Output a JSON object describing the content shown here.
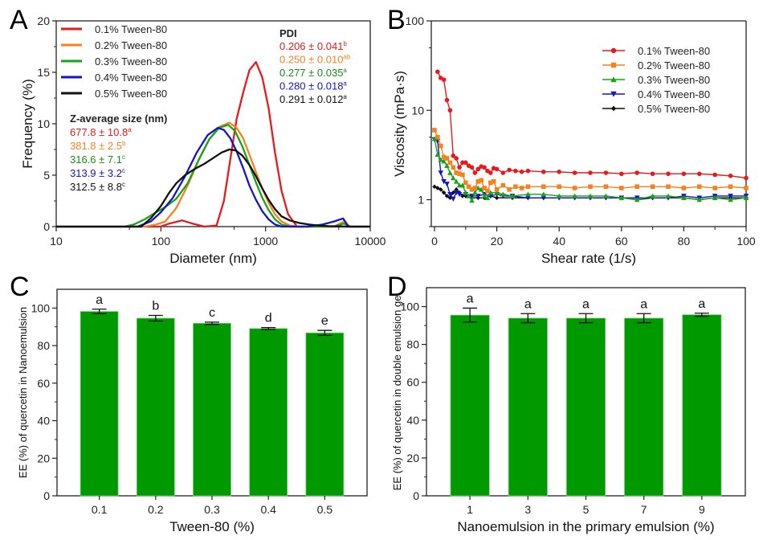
{
  "colors": {
    "red": "#e8191c",
    "orange": "#f5821f",
    "green": "#16a516",
    "blue": "#1414c8",
    "black": "#111111",
    "bar": "#009900",
    "pdi_green": "#1a8c1a"
  },
  "chart_data": [
    {
      "panel": "A",
      "type": "line",
      "xscale": "log",
      "xlabel": "Diameter (nm)",
      "ylabel": "Frequency (%)",
      "xlim": [
        10,
        10000
      ],
      "ylim": [
        0,
        20
      ],
      "xticks": [
        "10",
        "100",
        "1000",
        "10000"
      ],
      "yticks": [
        "0",
        "5",
        "10",
        "15",
        "20"
      ],
      "legend_position": "top-left",
      "series": [
        {
          "name": "0.1% Tween-80",
          "color": "#e8191c",
          "x": [
            10,
            100,
            120,
            160,
            200,
            260,
            340,
            400,
            460,
            530,
            610,
            700,
            810,
            930,
            1070,
            1230,
            1420,
            1640,
            2000,
            10000
          ],
          "y": [
            0,
            0,
            0.3,
            0.6,
            0.3,
            0,
            0.1,
            2.5,
            6.5,
            10.5,
            13,
            15.2,
            16,
            14.5,
            11.5,
            7.2,
            3.5,
            1.2,
            0,
            0
          ]
        },
        {
          "name": "0.2% Tween-80",
          "color": "#f5821f",
          "x": [
            10,
            70,
            90,
            110,
            140,
            180,
            230,
            290,
            360,
            450,
            530,
            610,
            700,
            810,
            930,
            1070,
            1230,
            1420,
            1700,
            2100,
            4500,
            5600,
            6400,
            10000
          ],
          "y": [
            0,
            0,
            0.2,
            0.5,
            1.8,
            4,
            6.5,
            8.5,
            9.7,
            10.1,
            9.6,
            8.6,
            7,
            5.3,
            3.7,
            2.3,
            1.2,
            0.5,
            0.1,
            0,
            0,
            0.5,
            0,
            0
          ]
        },
        {
          "name": "0.3% Tween-80",
          "color": "#16a516",
          "x": [
            10,
            45,
            55,
            70,
            90,
            110,
            140,
            180,
            230,
            290,
            360,
            440,
            510,
            600,
            700,
            810,
            930,
            1070,
            1230,
            1420,
            1700,
            2000,
            4500,
            5600,
            6400,
            10000
          ],
          "y": [
            0,
            0,
            0.2,
            0.7,
            1.4,
            1.9,
            2.7,
            4.2,
            6.5,
            8.5,
            9.6,
            9.9,
            9.3,
            7.8,
            6,
            4.3,
            2.8,
            1.6,
            0.7,
            0.2,
            0,
            0,
            0,
            0.3,
            0,
            0
          ]
        },
        {
          "name": "0.4% Tween-80",
          "color": "#1414c8",
          "x": [
            10,
            60,
            80,
            100,
            130,
            170,
            220,
            280,
            350,
            400,
            460,
            530,
            610,
            700,
            810,
            930,
            1070,
            1230,
            1420,
            1600,
            2500,
            3500,
            4500,
            5500,
            6200,
            10000
          ],
          "y": [
            0,
            0,
            0.5,
            1.4,
            2.8,
            4.9,
            7.2,
            8.9,
            9.6,
            9.4,
            8.6,
            7.3,
            5.7,
            4,
            2.6,
            1.5,
            0.7,
            0.2,
            0,
            0,
            0,
            0.2,
            0.5,
            0.8,
            0,
            0
          ]
        },
        {
          "name": "0.5% Tween-80",
          "color": "#111111",
          "x": [
            10,
            65,
            80,
            100,
            120,
            140,
            170,
            210,
            260,
            320,
            380,
            450,
            520,
            600,
            700,
            810,
            930,
            1070,
            1230,
            1420,
            1700,
            2100,
            2600,
            3200,
            4000,
            5000,
            6000,
            10000
          ],
          "y": [
            0,
            0,
            0.8,
            2,
            3.3,
            4.2,
            5,
            5.6,
            6.1,
            6.7,
            7.2,
            7.5,
            7.4,
            6.9,
            6,
            4.9,
            3.7,
            2.6,
            1.7,
            1,
            0.6,
            0.35,
            0.2,
            0.1,
            0.05,
            0.02,
            0,
            0
          ]
        }
      ],
      "annotations": {
        "zavg_title": "Z-average size (nm)",
        "zavg": [
          {
            "value": "677.8 ± 10.8",
            "sup": "a",
            "color": "#e8191c"
          },
          {
            "value": "381.8 ± 2.5",
            "sup": "b",
            "color": "#f5821f"
          },
          {
            "value": "316.6 ± 7.1",
            "sup": "c",
            "color": "#1a8c1a"
          },
          {
            "value": "313.9 ± 3.2",
            "sup": "c",
            "color": "#1414c8"
          },
          {
            "value": "312.5 ± 8.8",
            "sup": "c",
            "color": "#111111"
          }
        ],
        "pdi_title": "PDI",
        "pdi": [
          {
            "value": "0.206 ± 0.041",
            "sup": "b",
            "color": "#e8191c"
          },
          {
            "value": "0.250 ± 0.010",
            "sup": "ab",
            "color": "#f5821f"
          },
          {
            "value": "0.277 ± 0.035",
            "sup": "a",
            "color": "#1a8c1a"
          },
          {
            "value": "0.280 ± 0.018",
            "sup": "a",
            "color": "#1414c8"
          },
          {
            "value": "0.291 ± 0.012",
            "sup": "a",
            "color": "#111111"
          }
        ]
      }
    },
    {
      "panel": "B",
      "type": "line",
      "yscale": "log",
      "xlabel": "Shear rate (1/s)",
      "ylabel": "Viscosity (mPa·s)",
      "xlim": [
        -1,
        100
      ],
      "ylim": [
        0.5,
        100
      ],
      "xticks": [
        "0",
        "20",
        "40",
        "60",
        "80",
        "100"
      ],
      "yticks": [
        "1",
        "10",
        "100"
      ],
      "legend_position": "top-right",
      "series": [
        {
          "name": "0.1% Tween-80",
          "color": "#e8191c",
          "marker": "circle",
          "x": [
            1,
            2,
            3,
            4,
            5,
            6,
            7,
            8,
            9,
            10,
            11,
            12,
            13,
            14,
            15,
            16,
            17,
            18,
            19,
            20,
            22,
            24,
            26,
            28,
            30,
            35,
            40,
            45,
            50,
            55,
            60,
            65,
            70,
            75,
            80,
            85,
            90,
            95,
            100
          ],
          "y": [
            27,
            23,
            22,
            13,
            10,
            3.1,
            2.9,
            2.3,
            2.6,
            2.6,
            2.4,
            2.3,
            2.0,
            2.2,
            2.35,
            2.3,
            2.1,
            2.0,
            2.25,
            2.2,
            2.0,
            2.15,
            2.1,
            2.05,
            2.1,
            2.05,
            2.05,
            2.0,
            2.0,
            2.0,
            1.95,
            2.0,
            1.95,
            1.95,
            1.95,
            1.95,
            1.9,
            1.85,
            1.75
          ]
        },
        {
          "name": "0.2% Tween-80",
          "color": "#f5821f",
          "marker": "square",
          "x": [
            0,
            1,
            2,
            3,
            4,
            5,
            6,
            7,
            8,
            9,
            10,
            11,
            12,
            13,
            14,
            15,
            16,
            17,
            18,
            19,
            20,
            22,
            24,
            26,
            28,
            30,
            35,
            40,
            45,
            50,
            55,
            60,
            65,
            70,
            75,
            80,
            85,
            90,
            95,
            100
          ],
          "y": [
            6,
            5,
            4,
            3,
            2.9,
            2.6,
            2.3,
            2.0,
            1.95,
            1.9,
            1.55,
            1.4,
            1.3,
            1.35,
            1.6,
            1.65,
            1.35,
            1.25,
            1.55,
            1.6,
            1.3,
            1.45,
            1.3,
            1.4,
            1.35,
            1.4,
            1.4,
            1.4,
            1.35,
            1.4,
            1.4,
            1.35,
            1.4,
            1.4,
            1.4,
            1.35,
            1.4,
            1.35,
            1.4,
            1.35
          ]
        },
        {
          "name": "0.3% Tween-80",
          "color": "#16a516",
          "marker": "triangle-up",
          "x": [
            0,
            1,
            2,
            3,
            4,
            5,
            6,
            7,
            8,
            9,
            10,
            11,
            12,
            13,
            14,
            15,
            16,
            17,
            18,
            20,
            22,
            25,
            30,
            35,
            40,
            45,
            50,
            55,
            60,
            65,
            70,
            75,
            80,
            85,
            90,
            95,
            100
          ],
          "y": [
            4.8,
            3.2,
            2.8,
            2.7,
            2.4,
            2.0,
            1.75,
            1.6,
            1.45,
            1.45,
            1.2,
            1.1,
            0.98,
            1.2,
            1.35,
            1.3,
            1.1,
            1.05,
            1.2,
            1.2,
            1.15,
            1.1,
            1.15,
            1.15,
            1.1,
            1.1,
            1.1,
            1.1,
            1.05,
            1.0,
            1.1,
            1.1,
            1.05,
            1.0,
            1.05,
            1.0,
            1.05
          ]
        },
        {
          "name": "0.4% Tween-80",
          "color": "#1414c8",
          "marker": "triangle-down",
          "x": [
            0,
            1,
            2,
            3,
            4,
            5,
            6,
            7,
            8,
            10,
            12,
            14,
            16,
            18,
            20,
            22,
            25,
            30,
            35,
            40,
            45,
            50,
            55,
            60,
            65,
            70,
            75,
            80,
            85,
            90,
            95,
            100
          ],
          "y": [
            4.7,
            4.5,
            2.0,
            1.6,
            1.5,
            1.15,
            1.02,
            1.2,
            1.15,
            1.15,
            1.1,
            1.1,
            1.15,
            1.1,
            1.15,
            1.1,
            1.1,
            1.05,
            1.05,
            1.05,
            1.05,
            1.05,
            1.05,
            1.05,
            1.05,
            1.05,
            1.05,
            1.1,
            1.05,
            1.1,
            1.1,
            1.1
          ]
        },
        {
          "name": "0.5% Tween-80",
          "color": "#111111",
          "marker": "diamond",
          "x": [
            0,
            1,
            2,
            3,
            4,
            5,
            6,
            7,
            8,
            9,
            10,
            12,
            14,
            16,
            18,
            20,
            25,
            30,
            35,
            40,
            45,
            50,
            55,
            60,
            65,
            70,
            75,
            80,
            85,
            90,
            95,
            100
          ],
          "y": [
            1.4,
            1.35,
            1.3,
            1.2,
            1.1,
            1.05,
            1.2,
            1.3,
            1.2,
            1.1,
            1.1,
            1.05,
            1.05,
            1.05,
            1.1,
            1.05,
            1.05,
            1.05,
            1.05,
            1.05,
            1.05,
            1.05,
            1.05,
            1.05,
            1.0,
            1.05,
            1.05,
            1.05,
            1.0,
            1.05,
            1.05,
            1.05
          ]
        }
      ]
    },
    {
      "panel": "C",
      "type": "bar",
      "xlabel": "Tween-80 (%)",
      "ylabel": "EE (%) of quercetin in Nanoemulsion",
      "ylim": [
        0,
        110
      ],
      "yticks": [
        "0",
        "20",
        "40",
        "60",
        "80",
        "100"
      ],
      "categories": [
        "0.1",
        "0.2",
        "0.3",
        "0.4",
        "0.5"
      ],
      "values": [
        98.2,
        94.6,
        91.9,
        89.1,
        86.8
      ],
      "errors": [
        1.2,
        1.5,
        0.6,
        0.5,
        1.3
      ],
      "labels": [
        "a",
        "b",
        "c",
        "d",
        "e"
      ]
    },
    {
      "panel": "D",
      "type": "bar",
      "xlabel": "Nanoemulsion in the primary emulsion (%)",
      "ylabel": "EE (%) of quercetin in double emulsion gel",
      "ylim": [
        0,
        110
      ],
      "yticks": [
        "0",
        "20",
        "40",
        "60",
        "80",
        "100"
      ],
      "categories": [
        "1",
        "3",
        "5",
        "7",
        "9"
      ],
      "values": [
        95.5,
        93.9,
        93.9,
        93.9,
        95.7
      ],
      "errors": [
        3.7,
        2.4,
        2.4,
        2.4,
        0.8
      ],
      "labels": [
        "a",
        "a",
        "a",
        "a",
        "a"
      ]
    }
  ]
}
